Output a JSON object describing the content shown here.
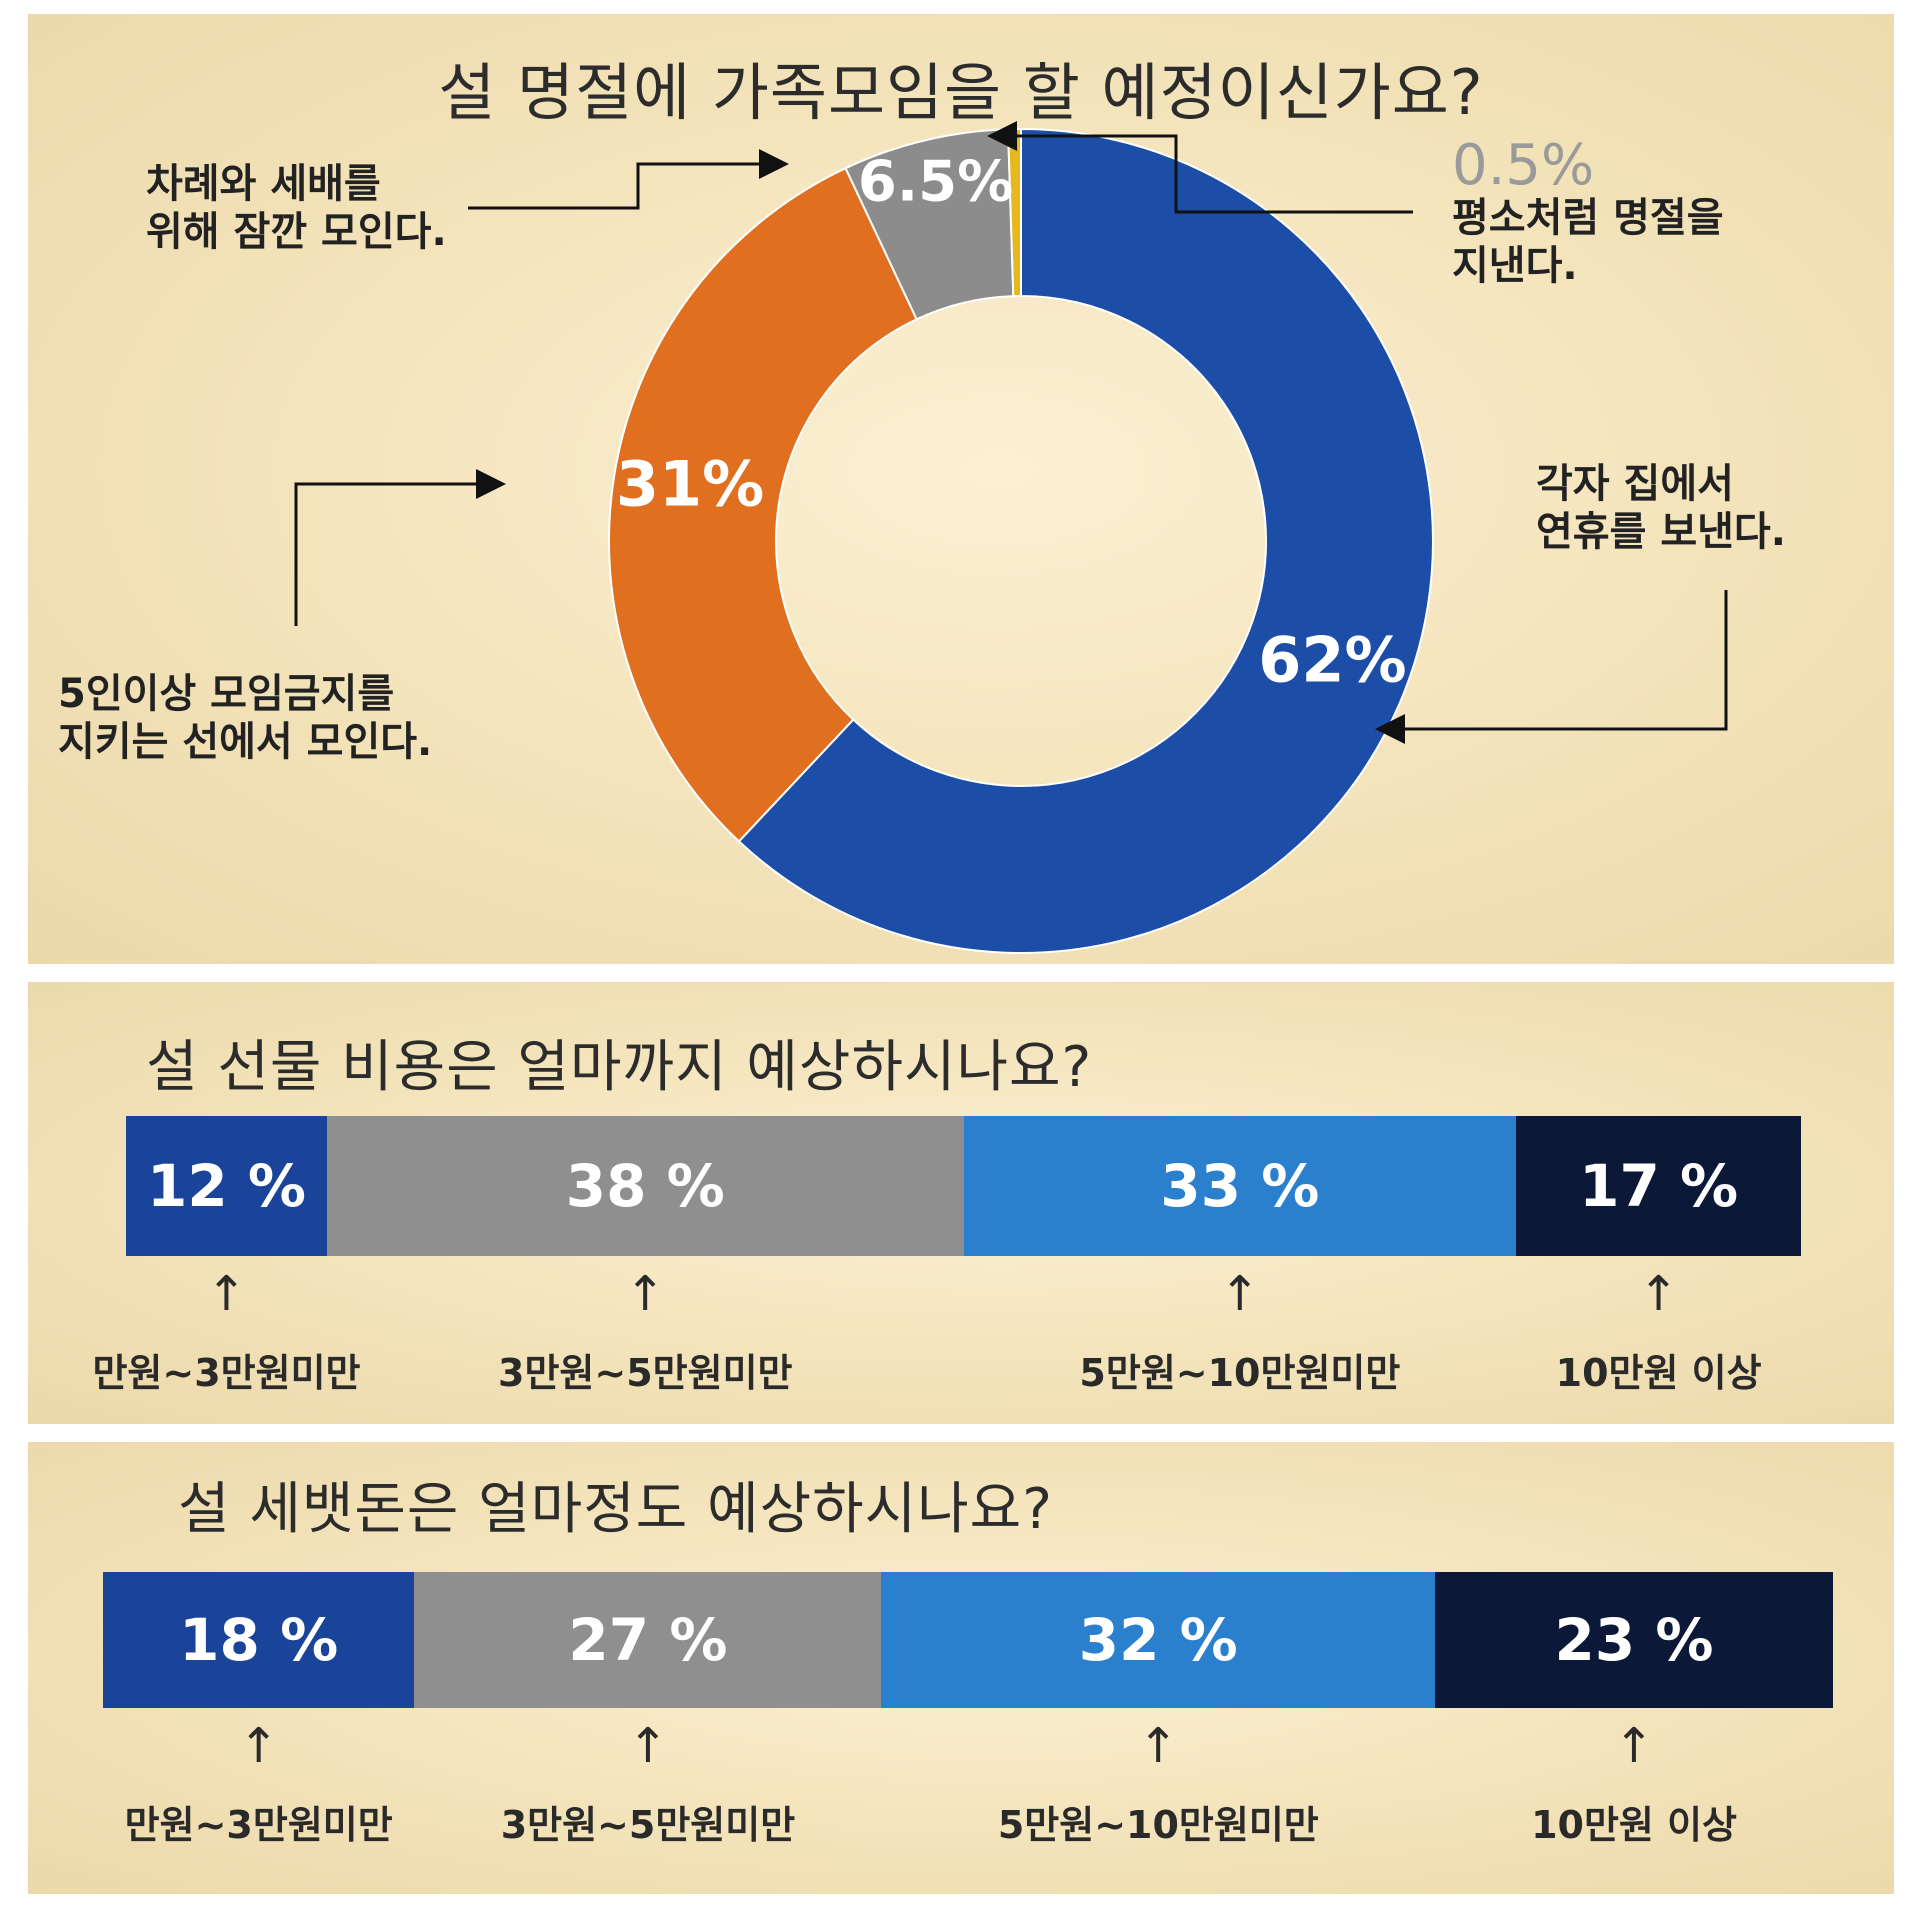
{
  "chart_data": [
    {
      "type": "pie",
      "title": "설 명절에 가족모임을 할 예정이신가요?",
      "slices": [
        {
          "label": "각자 집에서 연휴를 보낸다.",
          "label_lines": [
            "각자 집에서",
            "연휴를 보낸다."
          ],
          "value": 62,
          "value_label": "62%",
          "color": "#1c4ea8"
        },
        {
          "label": "5인이상 모임금지를 지키는 선에서 모인다.",
          "label_lines": [
            "5인이상 모임금지를",
            "지키는 선에서 모인다."
          ],
          "value": 31,
          "value_label": "31%",
          "color": "#e0701f"
        },
        {
          "label": "차례와 세배를 위해 잠깐 모인다.",
          "label_lines": [
            "차례와 세배를",
            "위해 잠깐 모인다."
          ],
          "value": 6.5,
          "value_label": "6.5%",
          "color": "#8c8c8c"
        },
        {
          "label": "평소처럼 명절을 지낸다.",
          "label_lines": [
            "평소처럼 명절을",
            "지낸다."
          ],
          "value": 0.5,
          "value_label": "0.5%",
          "color": "#e6b81e"
        }
      ],
      "donut": true
    },
    {
      "type": "bar",
      "orientation": "horizontal-stacked",
      "title": "설 선물 비용은 얼마까지 예상하시나요?",
      "categories": [
        "만원~3만원미만",
        "3만원~5만원미만",
        "5만원~10만원미만",
        "10만원 이상"
      ],
      "values": [
        12,
        38,
        33,
        17
      ],
      "value_labels": [
        "12 %",
        "38 %",
        "33 %",
        "17 %"
      ],
      "colors": [
        "#19449a",
        "#8f8f8f",
        "#2a80cc",
        "#0b1838"
      ]
    },
    {
      "type": "bar",
      "orientation": "horizontal-stacked",
      "title": "설 세뱃돈은 얼마정도 예상하시나요?",
      "categories": [
        "만원~3만원미만",
        "3만원~5만원미만",
        "5만원~10만원미만",
        "10만원 이상"
      ],
      "values": [
        18,
        27,
        32,
        23
      ],
      "value_labels": [
        "18 %",
        "27 %",
        "32 %",
        "23 %"
      ],
      "colors": [
        "#19449a",
        "#8f8f8f",
        "#2a80cc",
        "#0b1838"
      ]
    }
  ]
}
